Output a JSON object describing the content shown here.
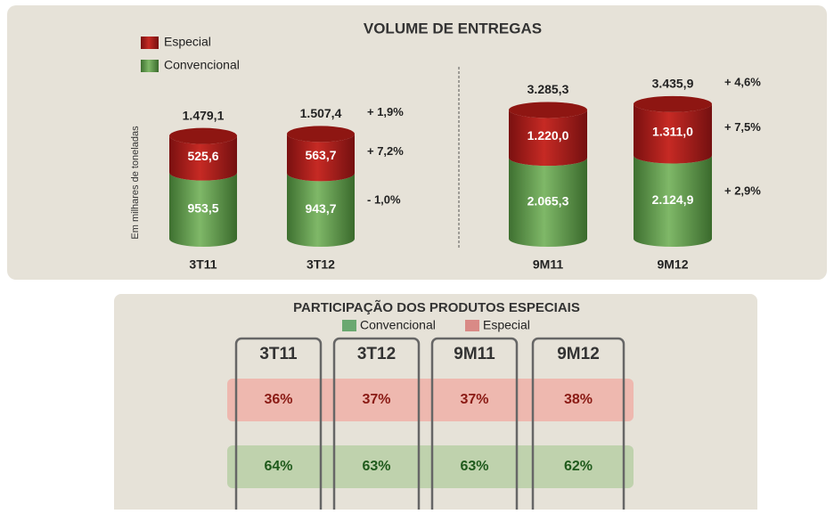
{
  "chart_data": {
    "type": "stacked-cylinder",
    "title": "VOLUME DE ENTREGAS",
    "y_label": "Em milhares de toneladas",
    "categories": [
      "3T11",
      "3T12",
      "9M11",
      "9M12"
    ],
    "series": [
      {
        "name": "Convencional",
        "color": "#5e9a48",
        "values": [
          953.5,
          943.7,
          2065.3,
          2124.9
        ],
        "value_labels": [
          "953,5",
          "943,7",
          "2.065,3",
          "2.124,9"
        ],
        "growth_labels": [
          null,
          "- 1,0%",
          null,
          "+ 2,9%"
        ]
      },
      {
        "name": "Especial",
        "color": "#b3201c",
        "values": [
          525.6,
          563.7,
          1220.0,
          1311.0
        ],
        "value_labels": [
          "525,6",
          "563,7",
          "1.220,0",
          "1.311,0"
        ],
        "growth_labels": [
          null,
          "+ 7,2%",
          null,
          "+ 7,5%"
        ]
      }
    ],
    "totals": [
      1479.1,
      1507.4,
      3285.3,
      3435.9
    ],
    "total_labels": [
      "1.479,1",
      "1.507,4",
      "3.285,3",
      "3.435,9"
    ],
    "total_growth_labels": [
      null,
      "+ 1,9%",
      null,
      "+ 4,6%"
    ]
  },
  "participation": {
    "title": "PARTICIPAÇÃO DOS PRODUTOS ESPECIAIS",
    "legend": [
      {
        "name": "Convencional",
        "color": "#6aa870"
      },
      {
        "name": "Especial",
        "color": "#d98a86"
      }
    ],
    "columns": [
      "3T11",
      "3T12",
      "9M11",
      "9M12"
    ],
    "rows": [
      [
        "36%",
        "37%",
        "37%",
        "38%"
      ],
      [
        "64%",
        "63%",
        "63%",
        "62%"
      ]
    ]
  }
}
